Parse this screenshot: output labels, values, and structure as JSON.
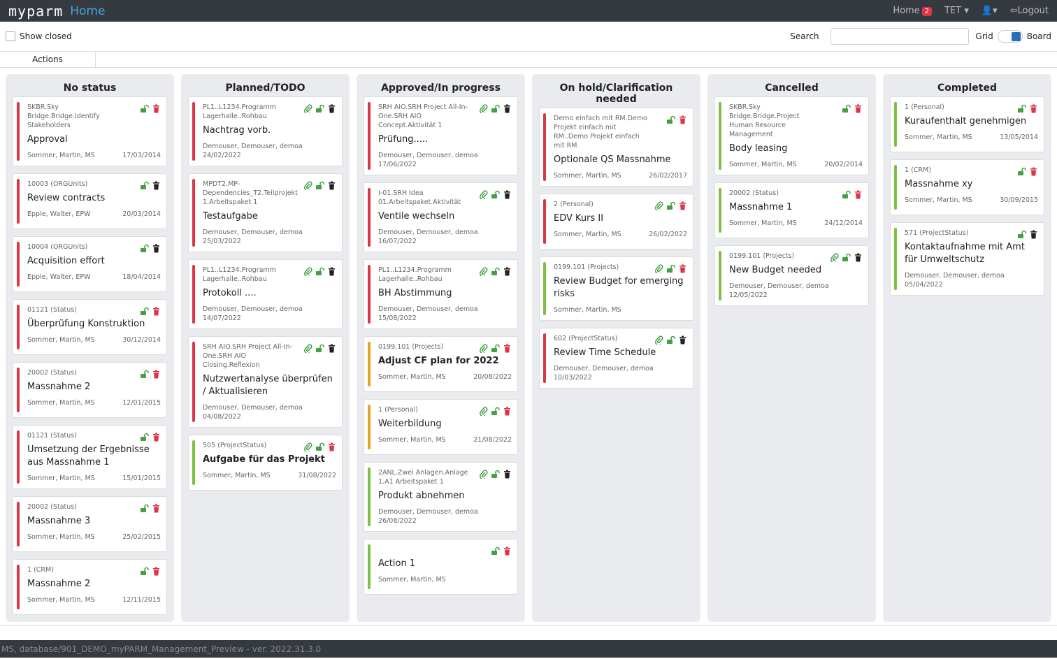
{
  "header": {
    "logo": "myparm",
    "title": "Home",
    "nav": {
      "home": "Home",
      "badge": "2",
      "user": "TET",
      "logout": "Logout"
    }
  },
  "toolbar": {
    "show_closed": "Show closed",
    "search": "Search",
    "grid": "Grid",
    "board": "Board"
  },
  "tabs": [
    "Actions"
  ],
  "columns": [
    {
      "title": "No status",
      "cards": [
        {
          "ref": "SKBR.Sky Bridge.Bridge.Identify Stakeholders",
          "title": "Approval",
          "people": "Sommer, Martin, MS",
          "date": "17/03/2014",
          "bar": "red",
          "attach": false,
          "trash": "red"
        },
        {
          "ref": "10003 (ORGUnits)",
          "title": "Review contracts",
          "people": "Epple, Walter, EPW",
          "date": "20/03/2014",
          "bar": "red",
          "attach": false,
          "trash": "dark"
        },
        {
          "ref": "10004 (ORGUnits)",
          "title": "Acquisition effort",
          "people": "Epple, Walter, EPW",
          "date": "18/04/2014",
          "bar": "red",
          "attach": false,
          "trash": "dark"
        },
        {
          "ref": "01121 (Status)",
          "title": "Überprüfung Konstruktion",
          "people": "Sommer, Martin, MS",
          "date": "30/12/2014",
          "bar": "red",
          "attach": false,
          "trash": "red"
        },
        {
          "ref": "20002 (Status)",
          "title": "Massnahme 2",
          "people": "Sommer, Martin, MS",
          "date": "12/01/2015",
          "bar": "red",
          "attach": false,
          "trash": "red"
        },
        {
          "ref": "01121 (Status)",
          "title": "Umsetzung der Ergebnisse aus Massnahme 1",
          "people": "Sommer, Martin, MS",
          "date": "15/01/2015",
          "bar": "red",
          "attach": false,
          "trash": "red"
        },
        {
          "ref": "20002 (Status)",
          "title": "Massnahme 3",
          "people": "Sommer, Martin, MS",
          "date": "25/02/2015",
          "bar": "red",
          "attach": false,
          "trash": "red"
        },
        {
          "ref": "1 (CRM)",
          "title": "Massnahme 2",
          "people": "Sommer, Martin, MS",
          "date": "12/11/2015",
          "bar": "red",
          "attach": false,
          "trash": "red"
        }
      ]
    },
    {
      "title": "Planned/TODO",
      "cards": [
        {
          "ref": "PL1..L1234.Programm Lagerhalle..Rohbau",
          "title": "Nachtrag vorb.",
          "people": "Demouser, Demouser, demoa",
          "date": "24/02/2022",
          "bar": "red",
          "attach": true,
          "trash": "dark"
        },
        {
          "ref": "MPDT2.MP-Dependencies_T2.Teilprojekt 1.Arbeitspaket 1",
          "title": "Testaufgabe",
          "people": "Demouser, Demouser, demoa",
          "date": "25/03/2022",
          "bar": "red",
          "attach": true,
          "trash": "dark"
        },
        {
          "ref": "PL1..L1234.Programm Lagerhalle..Rohbau",
          "title": "Protokoll ....",
          "people": "Demouser, Demouser, demoa",
          "date": "14/07/2022",
          "bar": "red",
          "attach": true,
          "trash": "dark"
        },
        {
          "ref": "SRH AIO.SRH Project All-In-One.SRH AIO Closing.Reflexion",
          "title": "Nutzwertanalyse überprüfen / Aktualisieren",
          "people": "Demouser, Demouser, demoa",
          "date": "04/08/2022",
          "bar": "red",
          "attach": true,
          "trash": "dark"
        },
        {
          "ref": "505 (ProjectStatus)",
          "title": "Aufgabe für das Projekt",
          "bold": true,
          "people": "Sommer, Martin, MS",
          "date": "31/08/2022",
          "bar": "green",
          "attach": true,
          "trash": "red"
        }
      ]
    },
    {
      "title": "Approved/In progress",
      "cards": [
        {
          "ref": "SRH AIO.SRH Project All-In-One.SRH AIO Concept.Aktivität 1",
          "title": "Prüfung.....",
          "people": "Demouser, Demouser, demoa",
          "date": "17/06/2022",
          "bar": "red",
          "attach": true,
          "trash": "dark"
        },
        {
          "ref": "I-01.SRH Idea 01.Arbeitspaket.Aktivität",
          "title": "Ventile wechseln",
          "people": "Demouser, Demouser, demoa",
          "date": "16/07/2022",
          "bar": "red",
          "attach": true,
          "trash": "dark"
        },
        {
          "ref": "PL1..L1234.Programm Lagerhalle..Rohbau",
          "title": "BH Abstimmung",
          "people": "Demouser, Demouser, demoa",
          "date": "15/08/2022",
          "bar": "red",
          "attach": true,
          "trash": "dark"
        },
        {
          "ref": "0199.101 (Projects)",
          "title": "Adjust CF plan for 2022",
          "bold": true,
          "people": "Sommer, Martin, MS",
          "date": "20/08/2022",
          "bar": "orange",
          "attach": true,
          "trash": "red"
        },
        {
          "ref": "1 (Personal)",
          "title": "Weiterbildung",
          "people": "Sommer, Martin, MS",
          "date": "21/08/2022",
          "bar": "orange",
          "attach": true,
          "trash": "red"
        },
        {
          "ref": "2ANL.Zwei Anlagen.Anlage 1.A1 Arbeitspaket 1",
          "title": "Produkt abnehmen",
          "people": "Demouser, Demouser, demoa",
          "date": "26/08/2022",
          "bar": "green",
          "attach": true,
          "trash": "dark"
        },
        {
          "title": "Action 1",
          "people": "Sommer, Martin, MS",
          "bar": "green",
          "attach": false,
          "trash": "red"
        }
      ]
    },
    {
      "title": "On hold/Clarification needed",
      "cards": [
        {
          "ref": "Demo einfach mit RM.Demo Projekt einfach mit RM..Demo Projekt einfach mit RM",
          "title": "Optionale QS Massnahme",
          "people": "Sommer, Martin, MS",
          "date": "26/02/2017",
          "bar": "red",
          "attach": false,
          "trash": "red"
        },
        {
          "ref": "2 (Personal)",
          "title": "EDV Kurs II",
          "people": "Sommer, Martin, MS",
          "date": "26/02/2022",
          "bar": "red",
          "attach": true,
          "trash": "red"
        },
        {
          "ref": "0199.101 (Projects)",
          "title": "Review Budget for emerging risks",
          "people": "Sommer, Martin, MS",
          "bar": "green",
          "attach": true,
          "trash": "red"
        },
        {
          "ref": "602 (ProjectStatus)",
          "title": "Review Time Schedule",
          "people": "Demouser, Demouser, demoa",
          "date": "10/03/2022",
          "bar": "red",
          "attach": true,
          "trash": "dark"
        }
      ]
    },
    {
      "title": "Cancelled",
      "cards": [
        {
          "ref": "SKBR.Sky Bridge.Bridge.Project Human Resource Management",
          "title": "Body leasing",
          "people": "Sommer, Martin, MS",
          "date": "20/02/2014",
          "bar": "green",
          "attach": false,
          "trash": "red"
        },
        {
          "ref": "20002 (Status)",
          "title": "Massnahme 1",
          "people": "Sommer, Martin, MS",
          "date": "24/12/2014",
          "bar": "green",
          "attach": false,
          "trash": "red"
        },
        {
          "ref": "0199.101 (Projects)",
          "title": "New Budget needed",
          "people": "Demouser, Demouser, demoa",
          "date": "12/05/2022",
          "bar": "green",
          "attach": true,
          "trash": "dark"
        }
      ]
    },
    {
      "title": "Completed",
      "cards": [
        {
          "ref": "1 (Personal)",
          "title": "Kuraufenthalt genehmigen",
          "people": "Sommer, Martin, MS",
          "date": "13/05/2014",
          "bar": "green",
          "attach": false,
          "trash": "red"
        },
        {
          "ref": "1 (CRM)",
          "title": "Massnahme xy",
          "people": "Sommer, Martin, MS",
          "date": "30/09/2015",
          "bar": "green",
          "attach": false,
          "trash": "red"
        },
        {
          "ref": "571 (ProjectStatus)",
          "title": "Kontaktaufnahme mit Amt für Umweltschutz",
          "people": "Demouser, Demouser, demoa",
          "date": "05/04/2022",
          "bar": "green",
          "attach": false,
          "trash": "dark"
        }
      ]
    }
  ],
  "footer": "MS, database/901_DEMO_myPARM_Management_Preview - ver. 2022.31.3.0"
}
